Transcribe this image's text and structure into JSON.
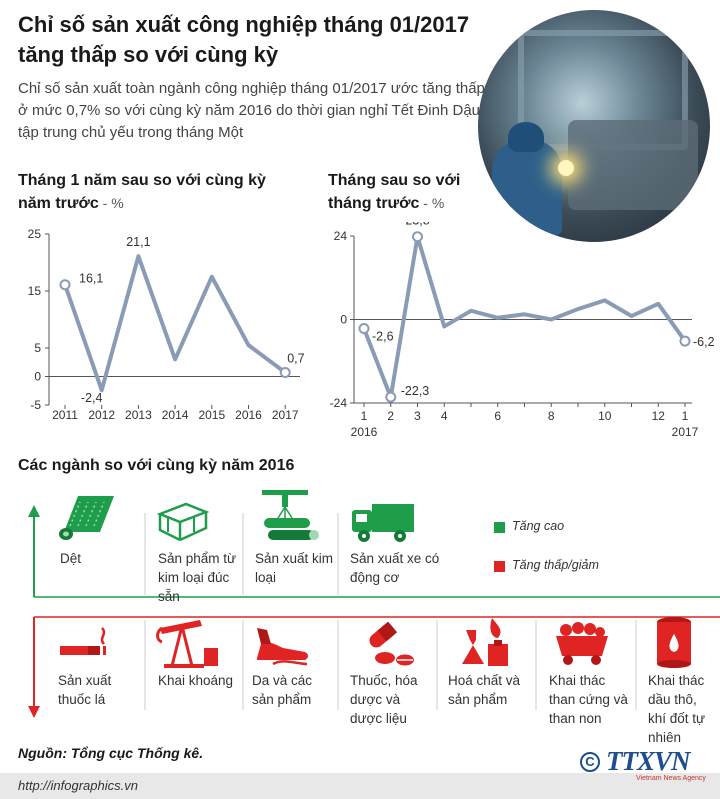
{
  "title": "Chỉ số sản xuất công nghiệp tháng 01/2017 tăng thấp so với cùng kỳ",
  "intro": "Chỉ số sản xuất toàn ngành công nghiệp tháng 01/2017 ước tăng thấp ở mức 0,7% so với cùng kỳ năm 2016 do thời gian nghỉ Tết Đinh Dậu tập trung chủ yếu trong tháng Một",
  "colors": {
    "line": "#8a9bb5",
    "green": "#1e9e4a",
    "red": "#e02424",
    "text": "#333333"
  },
  "chart_data": [
    {
      "type": "line",
      "title": "Tháng 1 năm sau so với cùng kỳ năm trước",
      "unit": " - %",
      "x": [
        "2011",
        "2012",
        "2013",
        "2014",
        "2015",
        "2016",
        "2017"
      ],
      "y_ticks": [
        "25",
        "15",
        "5",
        "0",
        "-5"
      ],
      "ylim": [
        -5,
        25
      ],
      "series": [
        {
          "values": [
            16.1,
            -2.4,
            21.1,
            3.0,
            17.5,
            5.5,
            0.7
          ]
        }
      ],
      "data_labels": [
        {
          "index": 0,
          "text": "16,1"
        },
        {
          "index": 1,
          "text": "-2,4"
        },
        {
          "index": 2,
          "text": "21,1"
        },
        {
          "index": 6,
          "text": "0,7"
        }
      ]
    },
    {
      "type": "line",
      "title": "Tháng sau so với tháng trước",
      "unit": " - %",
      "x": [
        "1",
        "2",
        "3",
        "4",
        "6",
        "8",
        "10",
        "12",
        "1"
      ],
      "x_positions": [
        1,
        2,
        3,
        4,
        6,
        8,
        10,
        12,
        13
      ],
      "x_values": [
        1,
        2,
        3,
        4,
        5,
        6,
        7,
        8,
        9,
        10,
        11,
        12,
        13
      ],
      "x_year_labels": [
        {
          "at": 1,
          "text": "2016"
        },
        {
          "at": 13,
          "text": "2017"
        }
      ],
      "y_ticks": [
        "24",
        "0",
        "-24"
      ],
      "ylim": [
        -24,
        24
      ],
      "series": [
        {
          "values": [
            -2.6,
            -22.3,
            23.8,
            -2.0,
            2.5,
            0.5,
            1.5,
            0.0,
            3.0,
            5.5,
            1.0,
            4.5,
            -6.2
          ]
        }
      ],
      "data_labels": [
        {
          "index": 0,
          "text": "-2,6"
        },
        {
          "index": 1,
          "text": "-22,3"
        },
        {
          "index": 2,
          "text": "23,8"
        },
        {
          "index": 12,
          "text": "-6,2"
        }
      ]
    }
  ],
  "sectors": {
    "title": "Các ngành so với cùng kỳ năm 2016",
    "legend": {
      "up": "Tăng cao",
      "down": "Tăng thấp/giảm"
    },
    "up": [
      {
        "label": "Dệt",
        "icon": "fabric-roll-icon"
      },
      {
        "label": "Sản phẩm từ kim loại đúc sẵn",
        "icon": "metal-beam-icon"
      },
      {
        "label": "Sản xuất kim loại",
        "icon": "metal-pipes-icon"
      },
      {
        "label": "Sản xuất xe có động cơ",
        "icon": "truck-icon"
      }
    ],
    "down": [
      {
        "label": "Sản xuất thuốc lá",
        "icon": "cigarette-icon"
      },
      {
        "label": "Khai khoáng",
        "icon": "oil-pump-icon"
      },
      {
        "label": "Da và các sản phẩm",
        "icon": "leather-shoe-icon"
      },
      {
        "label": "Thuốc, hóa dược và dược liệu",
        "icon": "pills-icon"
      },
      {
        "label": "Hoá chất và sản phẩm",
        "icon": "flask-icon"
      },
      {
        "label": "Khai thác than cứng và than non",
        "icon": "coal-cart-icon"
      },
      {
        "label": "Khai thác dầu thô, khí đốt tự nhiên",
        "icon": "oil-barrel-icon"
      }
    ]
  },
  "source": "Nguồn: Tổng cục Thống kê.",
  "url": "http://infographics.vn",
  "logo": {
    "copyright": "C",
    "name": "TTXVN",
    "sub": "Vietnam News Agency"
  }
}
